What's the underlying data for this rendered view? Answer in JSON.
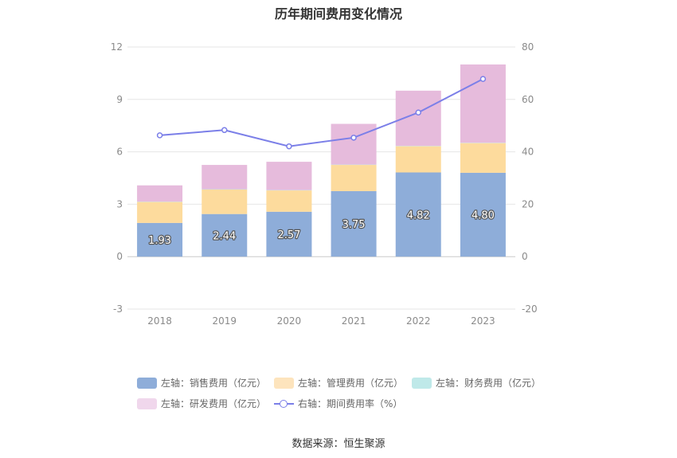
{
  "chart_data": {
    "type": "bar",
    "title": "历年期间费用变化情况",
    "categories": [
      "2018",
      "2019",
      "2020",
      "2021",
      "2022",
      "2023"
    ],
    "stacked": true,
    "series": [
      {
        "name": "左轴：销售费用（亿元）",
        "axis": "left",
        "color": "#8eadd9",
        "values": [
          1.93,
          2.44,
          2.57,
          3.75,
          4.82,
          4.8
        ],
        "labels": [
          "1.93",
          "2.44",
          "2.57",
          "3.75",
          "4.82",
          "4.80"
        ]
      },
      {
        "name": "左轴：管理费用（亿元）",
        "axis": "left",
        "color": "#fddb9d",
        "values": [
          1.2,
          1.4,
          1.22,
          1.5,
          1.5,
          1.7
        ]
      },
      {
        "name": "左轴：财务费用（亿元）",
        "axis": "left",
        "color": "#b9e6e6",
        "values": [
          0.02,
          0.02,
          0.02,
          0.02,
          0.02,
          0.02
        ]
      },
      {
        "name": "左轴：研发费用（亿元）",
        "axis": "left",
        "color": "#e6bbdc",
        "values": [
          0.93,
          1.39,
          1.62,
          2.33,
          3.16,
          4.48
        ]
      },
      {
        "name": "右轴：期间费用率（%）",
        "axis": "right",
        "type": "line",
        "color": "#7b7fe8",
        "values": [
          46.3,
          48.3,
          42.1,
          45.4,
          55.0,
          67.8
        ]
      }
    ],
    "left_axis": {
      "ylim": [
        -3,
        12
      ],
      "ticks": [
        "-3",
        "0",
        "3",
        "6",
        "9",
        "12"
      ]
    },
    "right_axis": {
      "ylim": [
        -20,
        80
      ],
      "ticks": [
        "-20",
        "0",
        "20",
        "40",
        "60",
        "80"
      ]
    },
    "grid": true,
    "legend_position": "bottom"
  },
  "legend_swatch_colors": [
    "#8eadd9",
    "#fde4bd",
    "#bfe9e9",
    "#f0d7ec"
  ],
  "source": "数据来源：恒生聚源"
}
